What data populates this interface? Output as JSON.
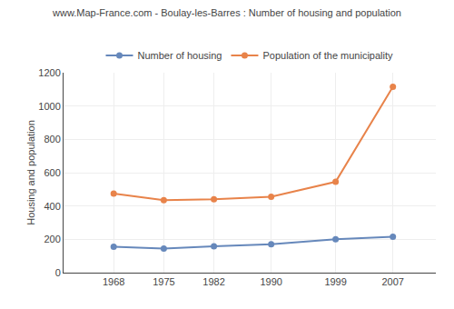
{
  "chart_data": {
    "type": "line",
    "title": "www.Map-France.com - Boulay-les-Barres : Number of housing and population",
    "ylabel": "Housing and population",
    "x": [
      1968,
      1975,
      1982,
      1990,
      1999,
      2007
    ],
    "series": [
      {
        "name": "Number of housing",
        "color": "#6688bb",
        "values": [
          155,
          145,
          158,
          170,
          200,
          215
        ]
      },
      {
        "name": "Population of the municipality",
        "color": "#e8834a",
        "values": [
          475,
          435,
          440,
          455,
          545,
          1115
        ]
      }
    ],
    "xlim": [
      1961,
      2013
    ],
    "xticks": [
      1968,
      1975,
      1982,
      1990,
      1999,
      2007
    ],
    "ylim": [
      0,
      1200
    ],
    "yticks": [
      0,
      200,
      400,
      600,
      800,
      1000,
      1200
    ],
    "grid": true,
    "legend": "top",
    "marker": "circle",
    "line_style": "solid"
  }
}
